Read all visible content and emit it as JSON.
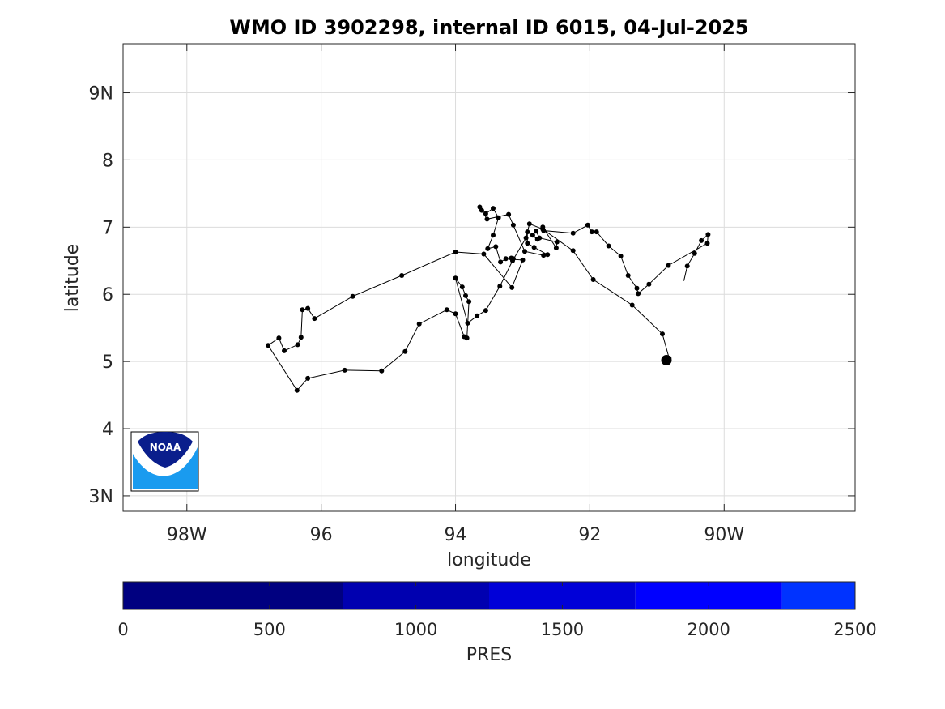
{
  "chart_data": {
    "type": "scatter",
    "title": "WMO ID 3902298, internal ID 6015, 04-Jul-2025",
    "xlabel": "longitude",
    "ylabel": "latitude",
    "xlim": [
      -98.95,
      -88.05
    ],
    "ylim": [
      2.77,
      9.73
    ],
    "x_ticks": [
      {
        "value": -98,
        "label": "98W"
      },
      {
        "value": -96,
        "label": "96"
      },
      {
        "value": -94,
        "label": "94"
      },
      {
        "value": -92,
        "label": "92"
      },
      {
        "value": -90,
        "label": "90W"
      }
    ],
    "y_ticks": [
      {
        "value": 3,
        "label": "3N"
      },
      {
        "value": 4,
        "label": "4"
      },
      {
        "value": 5,
        "label": "5"
      },
      {
        "value": 6,
        "label": "6"
      },
      {
        "value": 7,
        "label": "7"
      },
      {
        "value": 8,
        "label": "8"
      },
      {
        "value": 9,
        "label": "9N"
      }
    ],
    "grid": true,
    "line_color": "#000000",
    "marker_color": "#000000",
    "trajectory": {
      "start": {
        "lon": -90.6,
        "lat": 6.2
      },
      "profiles_lon": [
        -90.55,
        -90.44,
        -90.34,
        -90.24,
        -90.25,
        -90.83,
        -91.12,
        -91.28,
        -91.3,
        -91.43,
        -91.54,
        -91.72,
        -91.9,
        -91.97,
        -92.03,
        -92.25,
        -92.69,
        -92.7,
        -92.5,
        -92.49,
        -92.75,
        -92.8,
        -92.85,
        -92.78,
        -92.93,
        -92.93,
        -92.83,
        -92.63,
        -92.69,
        -92.97,
        -93.14,
        -93.21,
        -93.53,
        -93.61,
        -93.64,
        -93.55,
        -93.44,
        -93.36,
        -93.44,
        -93.52,
        -93.4,
        -93.33,
        -93.25,
        -93.17,
        -93.14,
        -93.15,
        -93.0,
        -93.16,
        -93.58,
        -94.0,
        -94.8,
        -95.53,
        -96.1,
        -96.2,
        -96.28,
        -96.3,
        -96.35,
        -96.55,
        -96.63,
        -96.79,
        -96.36,
        -96.2,
        -95.65,
        -95.1,
        -94.75,
        -94.54,
        -94.13,
        -94.0,
        -93.87,
        -93.83,
        -93.8,
        -93.85,
        -93.9,
        -94.0,
        -93.82,
        -93.68,
        -93.55,
        -93.34,
        -93.15,
        -92.95,
        -92.9,
        -92.7,
        -92.25,
        -91.95,
        -91.37,
        -90.92,
        -90.82,
        -90.85
      ],
      "profiles_lat": [
        6.42,
        6.61,
        6.8,
        6.89,
        6.76,
        6.43,
        6.15,
        6.01,
        6.09,
        6.28,
        6.57,
        6.72,
        6.93,
        6.93,
        7.03,
        6.91,
        6.95,
        7.0,
        6.69,
        6.78,
        6.84,
        6.94,
        6.88,
        6.82,
        6.93,
        6.76,
        6.7,
        6.59,
        6.58,
        6.64,
        7.03,
        7.19,
        7.12,
        7.25,
        7.3,
        7.2,
        7.28,
        7.14,
        6.88,
        6.68,
        6.71,
        6.48,
        6.53,
        6.54,
        6.53,
        6.52,
        6.51,
        6.1,
        6.6,
        6.63,
        6.28,
        5.97,
        5.64,
        5.79,
        5.77,
        5.36,
        5.25,
        5.16,
        5.35,
        5.24,
        4.57,
        4.75,
        4.87,
        4.86,
        5.15,
        5.56,
        5.77,
        5.71,
        5.37,
        5.35,
        5.89,
        5.98,
        6.11,
        6.24,
        5.57,
        5.68,
        5.76,
        6.12,
        6.5,
        6.84,
        7.05,
        6.97,
        6.65,
        6.22,
        5.84,
        5.41,
        5.05,
        5.01
      ],
      "path_lon": [
        -90.6,
        -90.55,
        -90.44,
        -90.34,
        -90.24,
        -90.25,
        -90.83,
        -91.12,
        -91.28,
        -91.3,
        -91.43,
        -91.54,
        -91.72,
        -91.9,
        -91.97,
        -92.03,
        -92.25,
        -92.69,
        -92.7,
        -92.5,
        -92.49,
        -92.75,
        -92.8,
        -92.85,
        -92.78,
        -92.93,
        -92.93,
        -92.83,
        -92.63,
        -92.69,
        -92.97,
        -93.14,
        -93.21,
        -93.53,
        -93.61,
        -93.64,
        -93.55,
        -93.44,
        -93.36,
        -93.44,
        -93.52,
        -93.4,
        -93.33,
        -93.25,
        -93.17,
        -93.14,
        -93.15,
        -93.0,
        -93.16,
        -93.58,
        -94.0,
        -94.8,
        -95.53,
        -96.1,
        -96.2,
        -96.28,
        -96.3,
        -96.35,
        -96.55,
        -96.63,
        -96.79,
        -96.36,
        -96.2,
        -95.65,
        -95.1,
        -94.75,
        -94.54,
        -94.13,
        -94.0,
        -93.87,
        -93.83,
        -93.8,
        -93.85,
        -93.9,
        -94.0,
        -93.82,
        -93.68,
        -93.55,
        -93.34,
        -93.15,
        -92.95,
        -92.9,
        -92.7,
        -92.25,
        -91.95,
        -91.37,
        -90.92,
        -90.82,
        -90.85
      ],
      "path_lat": [
        6.2,
        6.42,
        6.61,
        6.8,
        6.89,
        6.76,
        6.43,
        6.15,
        6.01,
        6.09,
        6.28,
        6.57,
        6.72,
        6.93,
        6.93,
        7.03,
        6.91,
        6.95,
        7.0,
        6.69,
        6.78,
        6.84,
        6.94,
        6.88,
        6.82,
        6.93,
        6.76,
        6.7,
        6.59,
        6.58,
        6.64,
        7.03,
        7.19,
        7.12,
        7.25,
        7.3,
        7.2,
        7.28,
        7.14,
        6.88,
        6.68,
        6.71,
        6.48,
        6.53,
        6.54,
        6.53,
        6.52,
        6.51,
        6.1,
        6.6,
        6.63,
        6.28,
        5.97,
        5.64,
        5.79,
        5.77,
        5.36,
        5.25,
        5.16,
        5.35,
        5.24,
        4.57,
        4.75,
        4.87,
        4.86,
        5.15,
        5.56,
        5.77,
        5.71,
        5.37,
        5.35,
        5.89,
        5.98,
        6.11,
        6.24,
        5.57,
        5.68,
        5.76,
        6.12,
        6.5,
        6.84,
        7.05,
        6.97,
        6.65,
        6.22,
        5.84,
        5.41,
        5.05,
        5.01
      ],
      "last_position": {
        "lon": -90.86,
        "lat": 5.02
      }
    },
    "colorbar": {
      "label": "PRES",
      "min": 0,
      "max": 2500,
      "ticks": [
        0,
        500,
        1000,
        1500,
        2000,
        2500
      ],
      "bands": [
        {
          "from": 0,
          "to": 750,
          "color": "#000080"
        },
        {
          "from": 750,
          "to": 1250,
          "color": "#0000B0"
        },
        {
          "from": 1250,
          "to": 1750,
          "color": "#0000D8"
        },
        {
          "from": 1750,
          "to": 2250,
          "color": "#0000FF"
        },
        {
          "from": 2250,
          "to": 2500,
          "color": "#0033FF"
        }
      ]
    },
    "logo": {
      "text": "NOAA",
      "colors": {
        "navy": "#0A1E8C",
        "sky": "#1A9BEF"
      }
    }
  }
}
